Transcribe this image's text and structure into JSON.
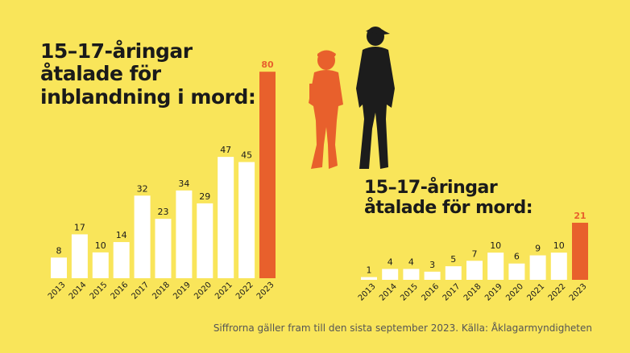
{
  "colors": {
    "background": "#f9e55a",
    "bar": "#ffffff",
    "highlight": "#e8602c",
    "text": "#1a1a1a",
    "silhouette_dark": "#1c1c1c"
  },
  "title1_lines": [
    "15–17-åringar",
    "åtalade för",
    "inblandning i mord:"
  ],
  "title2_lines": [
    "15–17-åringar",
    "åtalade för mord:"
  ],
  "footnote": "Siffrorna gäller fram till den sista september 2023. Källa: Åklagarmyndigheten",
  "chart_data": [
    {
      "type": "bar",
      "title": "15–17-åringar åtalade för inblandning i mord:",
      "categories": [
        "2013",
        "2014",
        "2015",
        "2016",
        "2017",
        "2018",
        "2019",
        "2020",
        "2021",
        "2022",
        "2023"
      ],
      "values": [
        8,
        17,
        10,
        14,
        32,
        23,
        34,
        29,
        47,
        45,
        80
      ],
      "highlight_index": 10,
      "data_labels": true
    },
    {
      "type": "bar",
      "title": "15–17-åringar åtalade för mord:",
      "categories": [
        "2013",
        "2014",
        "2015",
        "2016",
        "2017",
        "2018",
        "2019",
        "2020",
        "2021",
        "2022",
        "2023"
      ],
      "values": [
        1,
        4,
        4,
        3,
        5,
        7,
        10,
        6,
        9,
        10,
        21
      ],
      "highlight_index": 10,
      "data_labels": true
    }
  ]
}
